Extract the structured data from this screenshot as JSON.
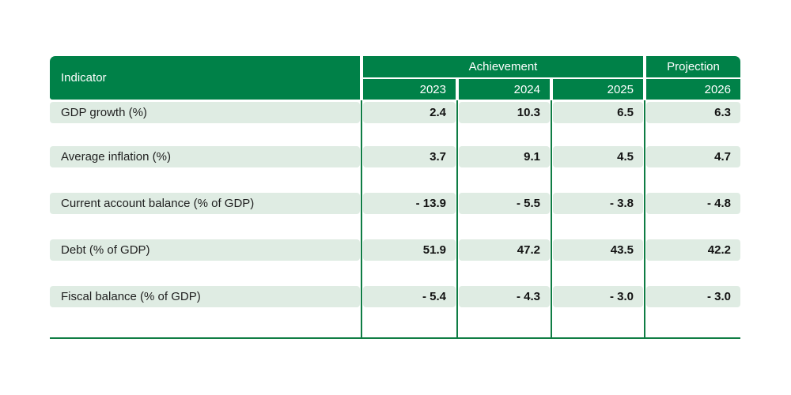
{
  "page": {
    "background_color": "#ffffff"
  },
  "colors": {
    "header_green": "#008148",
    "row_band_green": "#dfece3",
    "separator_line_green": "#0f7d44",
    "header_text": "#ffffff",
    "body_text": "#1f1f1f"
  },
  "table": {
    "header": {
      "indicator_label": "Indicator",
      "achievement_label": "Achievement",
      "projection_label": "Projection",
      "years": [
        "2023",
        "2024",
        "2025",
        "2026"
      ]
    },
    "rows": [
      {
        "label": "GDP growth (%)",
        "values": [
          "2.4",
          "10.3",
          "6.5",
          "6.3"
        ]
      },
      {
        "label": "Average inflation (%)",
        "values": [
          "3.7",
          "9.1",
          "4.5",
          "4.7"
        ]
      },
      {
        "label": "Current account balance (% of GDP)",
        "values": [
          "- 13.9",
          "- 5.5",
          "- 3.8",
          "- 4.8"
        ]
      },
      {
        "label": "Debt (% of GDP)",
        "values": [
          "51.9",
          "47.2",
          "43.5",
          "42.2"
        ]
      },
      {
        "label": "Fiscal balance (% of GDP)",
        "values": [
          "- 5.4",
          "- 4.3",
          "- 3.0",
          "- 3.0"
        ]
      }
    ]
  },
  "chart_data": {
    "type": "table",
    "title": "",
    "column_groups": [
      {
        "label": "Achievement",
        "columns": [
          "2023",
          "2024",
          "2025"
        ]
      },
      {
        "label": "Projection",
        "columns": [
          "2026"
        ]
      }
    ],
    "categories": [
      "2023",
      "2024",
      "2025",
      "2026"
    ],
    "series": [
      {
        "name": "GDP growth (%)",
        "values": [
          2.4,
          10.3,
          6.5,
          6.3
        ]
      },
      {
        "name": "Average inflation (%)",
        "values": [
          3.7,
          9.1,
          4.5,
          4.7
        ]
      },
      {
        "name": "Current account balance (% of GDP)",
        "values": [
          -13.9,
          -5.5,
          -3.8,
          -4.8
        ]
      },
      {
        "name": "Debt (% of GDP)",
        "values": [
          51.9,
          47.2,
          43.5,
          42.2
        ]
      },
      {
        "name": "Fiscal balance (% of GDP)",
        "values": [
          -5.4,
          -4.3,
          -3.0,
          -3.0
        ]
      }
    ]
  }
}
